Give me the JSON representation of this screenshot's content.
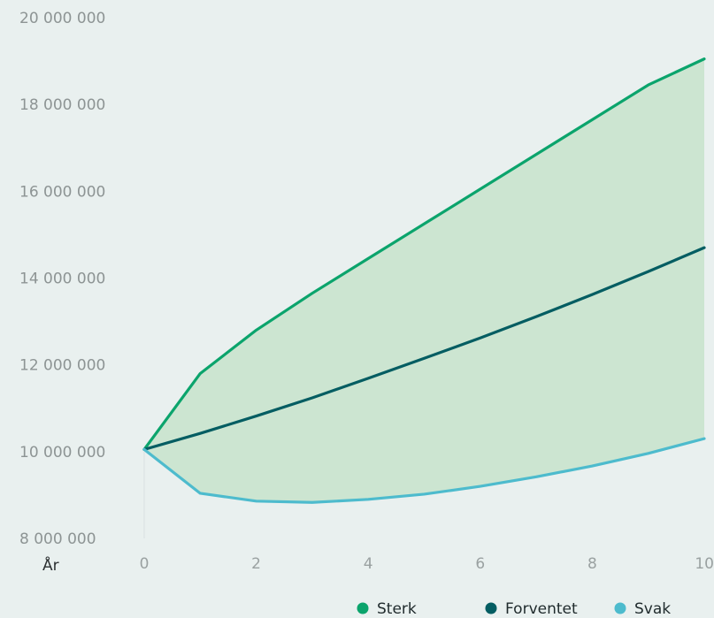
{
  "chart_data": {
    "type": "area",
    "x_label": "År",
    "x": [
      0,
      1,
      2,
      3,
      4,
      5,
      6,
      7,
      8,
      9,
      10
    ],
    "x_ticks": [
      0,
      2,
      4,
      6,
      8,
      10
    ],
    "x_tick_labels": [
      "0",
      "2",
      "4",
      "6",
      "8",
      "10"
    ],
    "xlim": [
      0,
      10
    ],
    "ylim": [
      8000000,
      20000000
    ],
    "y_ticks": [
      8000000,
      10000000,
      12000000,
      14000000,
      16000000,
      18000000,
      20000000
    ],
    "y_tick_labels": [
      "8 000 000",
      "10 000 000",
      "12 000 000",
      "14 000 000",
      "16 000 000",
      "18 000 000",
      "20 000 000"
    ],
    "band": {
      "upper": "Sterk",
      "lower": "Svak",
      "color": "#cce5d1"
    },
    "series": [
      {
        "name": "Sterk",
        "color": "#0ba46c",
        "values": [
          10050000,
          11800000,
          12800000,
          13650000,
          14450000,
          15250000,
          16050000,
          16850000,
          17650000,
          18450000,
          19050000
        ]
      },
      {
        "name": "Forventet",
        "color": "#045d62",
        "values": [
          10050000,
          10420000,
          10820000,
          11240000,
          11690000,
          12150000,
          12620000,
          13110000,
          13620000,
          14150000,
          14700000
        ]
      },
      {
        "name": "Svak",
        "color": "#4dbbcd",
        "values": [
          10050000,
          9040000,
          8860000,
          8830000,
          8900000,
          9020000,
          9200000,
          9420000,
          9670000,
          9960000,
          10300000
        ]
      }
    ],
    "legend": {
      "position": "bottom-right",
      "items": [
        "Sterk",
        "Forventet",
        "Svak"
      ]
    },
    "grid": false
  }
}
